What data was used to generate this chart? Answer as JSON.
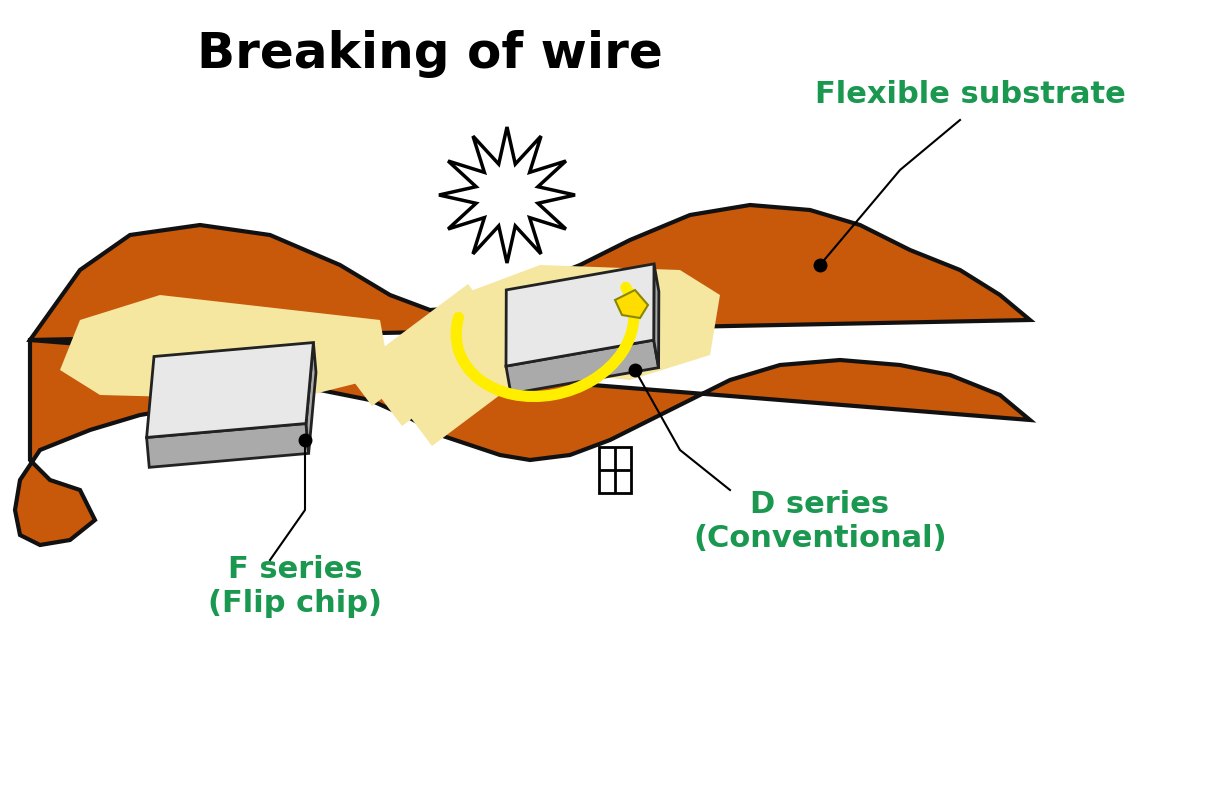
{
  "title": "Breaking of wire",
  "title_fontsize": 36,
  "title_fontweight": "bold",
  "title_color": "#000000",
  "label_flexible": "Flexible substrate",
  "label_flexible_color": "#1a9850",
  "label_flexible_fontsize": 22,
  "label_flexible_fontweight": "bold",
  "label_fseries": "F series\n(Flip chip)",
  "label_fseries_color": "#1a9850",
  "label_fseries_fontsize": 22,
  "label_fseries_fontweight": "bold",
  "label_dseries": "D series\n(Conventional)",
  "label_dseries_color": "#1a9850",
  "label_dseries_fontsize": 22,
  "label_dseries_fontweight": "bold",
  "substrate_color": "#c8580a",
  "substrate_outline": "#111111",
  "pad_color": "#f5e6a0",
  "chip_top_color": "#e8e8e8",
  "chip_side_color": "#aaaaaa",
  "chip_outline": "#222222",
  "wire_color": "#ffee00",
  "explosion_color": "#ffffff",
  "explosion_outline": "#000000",
  "dot_color": "#000000",
  "background_color": "#ffffff"
}
